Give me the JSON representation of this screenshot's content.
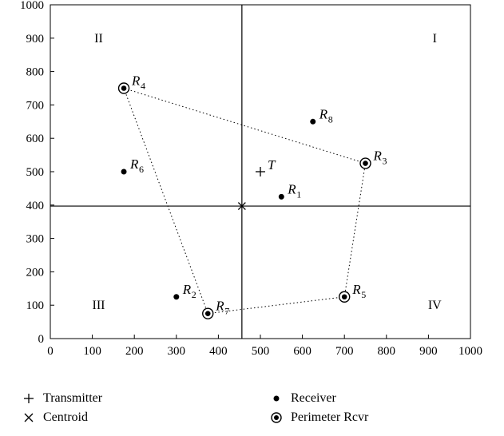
{
  "chart_data": {
    "type": "scatter",
    "xlim": [
      0,
      1000
    ],
    "ylim": [
      0,
      1000
    ],
    "xticks": [
      0,
      100,
      200,
      300,
      400,
      500,
      600,
      700,
      800,
      900,
      1000
    ],
    "yticks": [
      0,
      100,
      200,
      300,
      400,
      500,
      600,
      700,
      800,
      900,
      1000
    ],
    "xlabel": "",
    "ylabel": "",
    "grid": false,
    "quadrant_lines": {
      "x": 456,
      "y": 397
    },
    "quadrant_labels": [
      {
        "label": "I",
        "x": 915,
        "y": 900
      },
      {
        "label": "II",
        "x": 115,
        "y": 900
      },
      {
        "label": "III",
        "x": 115,
        "y": 100
      },
      {
        "label": "IV",
        "x": 915,
        "y": 100
      }
    ],
    "transmitter": {
      "label": "T",
      "x": 500,
      "y": 500
    },
    "centroid": {
      "x": 456,
      "y": 397
    },
    "receivers": [
      {
        "label": "R",
        "sub": "1",
        "x": 550,
        "y": 425,
        "perimeter": false
      },
      {
        "label": "R",
        "sub": "2",
        "x": 300,
        "y": 125,
        "perimeter": false
      },
      {
        "label": "R",
        "sub": "3",
        "x": 750,
        "y": 525,
        "perimeter": true
      },
      {
        "label": "R",
        "sub": "4",
        "x": 175,
        "y": 750,
        "perimeter": true
      },
      {
        "label": "R",
        "sub": "5",
        "x": 700,
        "y": 125,
        "perimeter": true
      },
      {
        "label": "R",
        "sub": "6",
        "x": 175,
        "y": 500,
        "perimeter": false
      },
      {
        "label": "R",
        "sub": "7",
        "x": 375,
        "y": 75,
        "perimeter": true
      },
      {
        "label": "R",
        "sub": "8",
        "x": 625,
        "y": 650,
        "perimeter": false
      }
    ],
    "perimeter_order": [
      "4",
      "3",
      "5",
      "7"
    ],
    "legend_placement": "bottom"
  },
  "legend": {
    "transmitter": "Transmitter",
    "centroid": "Centroid",
    "receiver": "Receiver",
    "perimeter": "Perimeter Rcvr"
  }
}
